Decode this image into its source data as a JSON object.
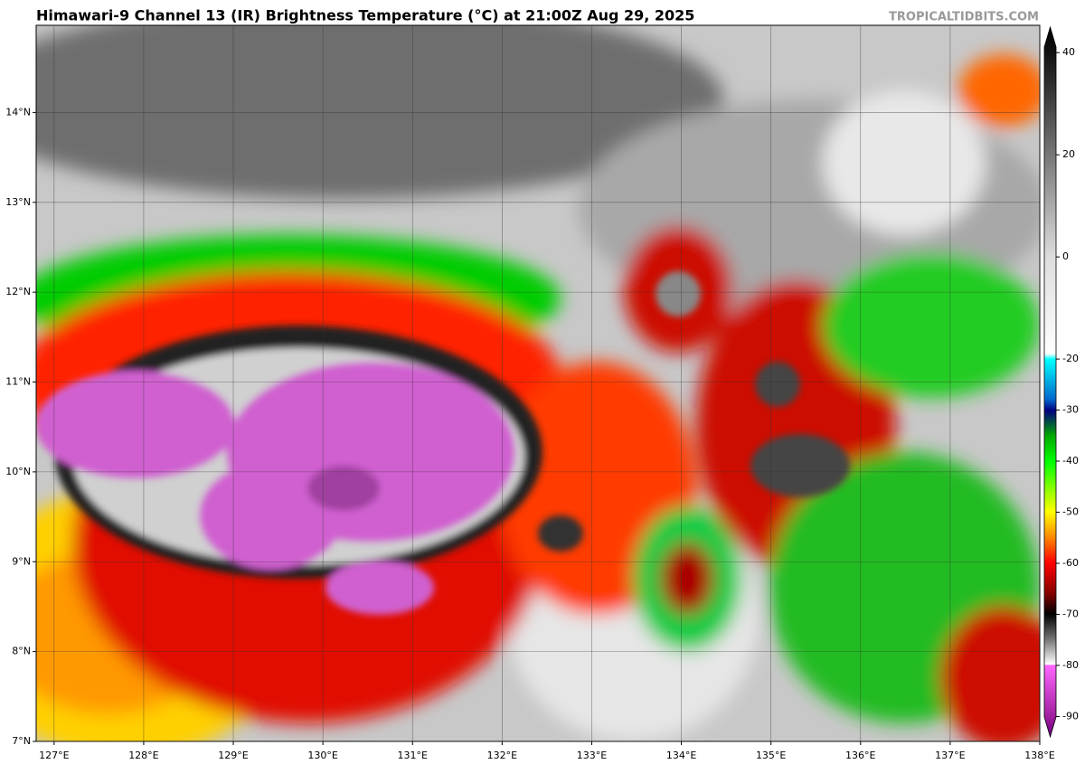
{
  "title": "Himawari-9 Channel 13 (IR) Brightness Temperature (°C) at 21:00Z Aug 29, 2025",
  "credit": "TROPICALTIDBITS.COM",
  "map": {
    "lon_lim": [
      126.8,
      138
    ],
    "lat_lim": [
      7,
      14.97
    ],
    "lon_ticks": [
      {
        "value": 127,
        "label": "127°E"
      },
      {
        "value": 128,
        "label": "128°E"
      },
      {
        "value": 129,
        "label": "129°E"
      },
      {
        "value": 130,
        "label": "130°E"
      },
      {
        "value": 131,
        "label": "131°E"
      },
      {
        "value": 132,
        "label": "132°E"
      },
      {
        "value": 133,
        "label": "133°E"
      },
      {
        "value": 134,
        "label": "134°E"
      },
      {
        "value": 135,
        "label": "135°E"
      },
      {
        "value": 136,
        "label": "136°E"
      },
      {
        "value": 137,
        "label": "137°E"
      },
      {
        "value": 138,
        "label": "138°E"
      }
    ],
    "lat_ticks": [
      {
        "value": 7,
        "label": "7°N"
      },
      {
        "value": 8,
        "label": "8°N"
      },
      {
        "value": 9,
        "label": "9°N"
      },
      {
        "value": 10,
        "label": "10°N"
      },
      {
        "value": 11,
        "label": "11°N"
      },
      {
        "value": 12,
        "label": "12°N"
      },
      {
        "value": 13,
        "label": "13°N"
      },
      {
        "value": 14,
        "label": "14°N"
      }
    ]
  },
  "colorbar": {
    "lim": [
      -94,
      45
    ],
    "ticks": [
      40,
      20,
      0,
      -20,
      -30,
      -40,
      -50,
      -60,
      -70,
      -80,
      -90
    ]
  }
}
